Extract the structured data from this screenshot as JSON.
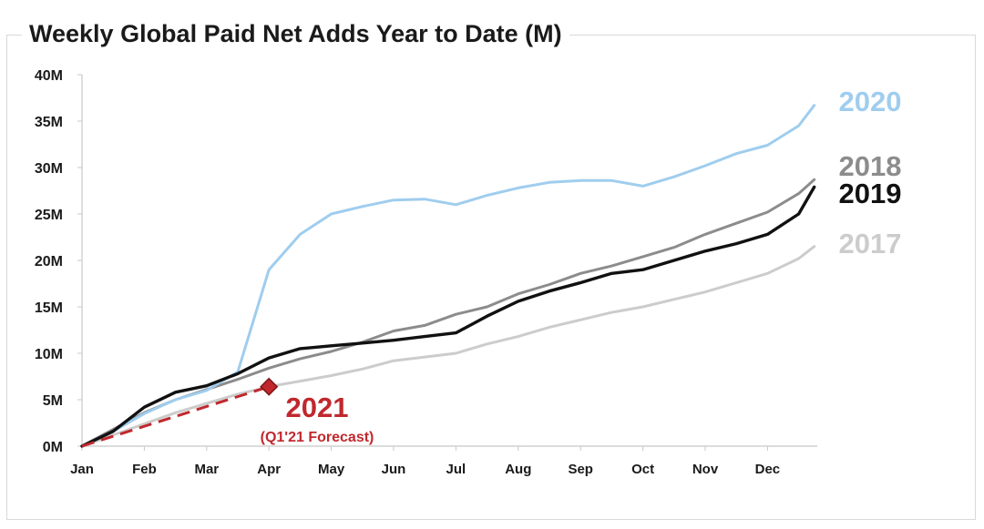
{
  "chart_data": {
    "type": "line",
    "title": "Weekly Global Paid Net Adds Year to Date (M)",
    "xlabel": "",
    "ylabel": "",
    "x_categories": [
      "Jan",
      "Feb",
      "Mar",
      "Apr",
      "May",
      "Jun",
      "Jul",
      "Aug",
      "Sep",
      "Oct",
      "Nov",
      "Dec"
    ],
    "y_ticks": [
      "0M",
      "5M",
      "10M",
      "15M",
      "20M",
      "25M",
      "30M",
      "35M",
      "40M"
    ],
    "ylim": [
      0,
      40
    ],
    "xlim": [
      0,
      11.75
    ],
    "grid": false,
    "series": [
      {
        "name": "2017",
        "color": "#cccccc",
        "x": [
          0,
          0.5,
          1,
          1.5,
          2,
          2.5,
          3,
          3.5,
          4,
          4.5,
          5,
          5.5,
          6,
          6.5,
          7,
          7.5,
          8,
          8.5,
          9,
          9.5,
          10,
          10.5,
          11,
          11.5,
          11.75
        ],
        "y": [
          0,
          1.2,
          2.4,
          3.6,
          4.6,
          5.6,
          6.4,
          7.0,
          7.6,
          8.3,
          9.2,
          9.6,
          10.0,
          11.0,
          11.8,
          12.8,
          13.6,
          14.4,
          15.0,
          15.8,
          16.6,
          17.6,
          18.6,
          20.2,
          21.5
        ]
      },
      {
        "name": "2018",
        "color": "#8c8c8c",
        "x": [
          0,
          0.5,
          1,
          1.5,
          2,
          2.5,
          3,
          3.5,
          4,
          4.5,
          5,
          5.5,
          6,
          6.5,
          7,
          7.5,
          8,
          8.5,
          9,
          9.5,
          10,
          10.5,
          11,
          11.5,
          11.75
        ],
        "y": [
          0,
          1.8,
          3.6,
          5.0,
          6.1,
          7.2,
          8.4,
          9.4,
          10.2,
          11.2,
          12.4,
          13.0,
          14.2,
          15.0,
          16.4,
          17.4,
          18.6,
          19.4,
          20.4,
          21.4,
          22.8,
          24.0,
          25.2,
          27.2,
          28.7
        ]
      },
      {
        "name": "2019",
        "color": "#111111",
        "x": [
          0,
          0.5,
          1,
          1.5,
          2,
          2.5,
          3,
          3.5,
          4,
          4.5,
          5,
          5.5,
          6,
          6.5,
          7,
          7.5,
          8,
          8.5,
          9,
          9.5,
          10,
          10.5,
          11,
          11.5,
          11.75
        ],
        "y": [
          0,
          1.6,
          4.2,
          5.8,
          6.5,
          7.8,
          9.5,
          10.5,
          10.8,
          11.1,
          11.4,
          11.8,
          12.2,
          14.0,
          15.6,
          16.7,
          17.6,
          18.6,
          19.0,
          20.0,
          21.0,
          21.8,
          22.8,
          25.0,
          27.9
        ]
      },
      {
        "name": "2020",
        "color": "#9fcdee",
        "x": [
          0,
          0.5,
          1,
          1.5,
          2,
          2.5,
          3,
          3.5,
          4,
          4.5,
          5,
          5.5,
          6,
          6.5,
          7,
          7.5,
          8,
          8.5,
          9,
          9.5,
          10,
          10.5,
          11,
          11.5,
          11.75
        ],
        "y": [
          0,
          1.6,
          3.5,
          5.0,
          6.0,
          8.0,
          19.0,
          22.8,
          25.0,
          25.8,
          26.5,
          26.6,
          26.0,
          27.0,
          27.8,
          28.4,
          28.6,
          28.6,
          28.0,
          29.0,
          30.2,
          31.5,
          32.4,
          34.5,
          36.7
        ]
      },
      {
        "name": "2021",
        "color": "#c0282d",
        "dashed": true,
        "x": [
          0,
          3
        ],
        "y": [
          0,
          6.4
        ],
        "marker": "diamond",
        "annotation": "(Q1'21 Forecast)"
      }
    ]
  }
}
